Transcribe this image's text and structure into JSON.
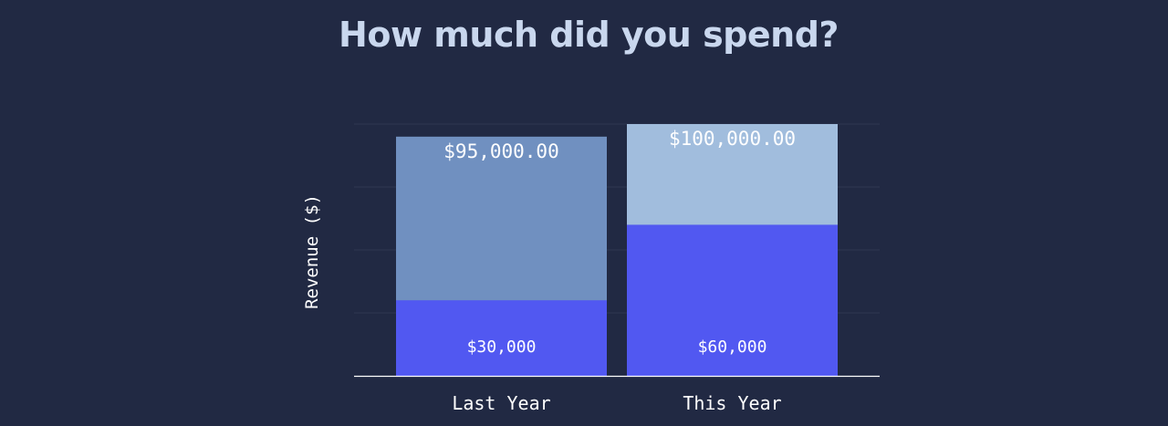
{
  "colors": {
    "background": "#212943",
    "title": "#c9d7ee",
    "base_segment": "#5158f1",
    "total_last_year": "#7090c0",
    "total_this_year": "#a1bddd",
    "gridline": "#2e3752",
    "axis": "#ffffff",
    "label": "#ffffff"
  },
  "chart_data": {
    "type": "bar",
    "title": "How much did you spend?",
    "xlabel": "",
    "ylabel": "Revenue ($)",
    "ylim": [
      0,
      100000
    ],
    "grid": true,
    "categories": [
      "Last Year",
      "This Year"
    ],
    "series": [
      {
        "values": [
          30000,
          60000
        ],
        "labels": [
          "$30,000",
          "$60,000"
        ]
      },
      {
        "values": [
          95000,
          100000
        ],
        "labels": [
          "$95,000.00",
          "$100,000.00"
        ]
      }
    ]
  }
}
